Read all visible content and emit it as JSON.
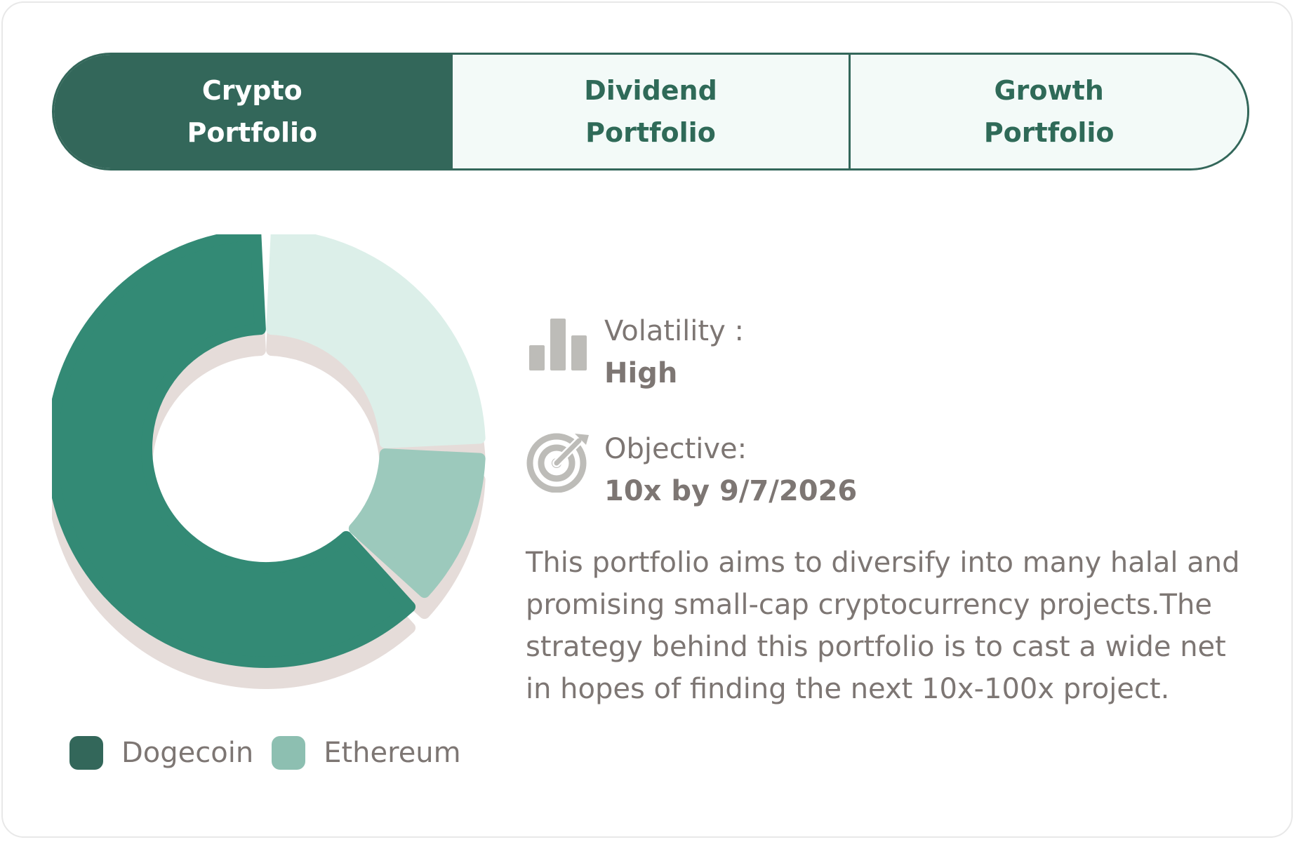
{
  "tabs": [
    {
      "label": "Crypto Portfolio",
      "active": true
    },
    {
      "label": "Dividend Portfolio",
      "active": false
    },
    {
      "label": "Growth Portfolio",
      "active": false
    }
  ],
  "details": {
    "volatility_label": "Volatility :",
    "volatility_value": "High",
    "objective_label": "Objective:",
    "objective_value": "10x by 9/7/2026",
    "description": "This portfolio aims to diversify into many halal and promising small-cap cryptocurrency projects.The strategy behind this portfolio is to cast a wide net in hopes of finding the next 10x-100x project."
  },
  "icons": {
    "volatility": "bar-chart-icon",
    "objective": "target-icon"
  },
  "colors": {
    "primary": "#33675a",
    "segment_main": "#338a75",
    "segment_light": "#dcefe9",
    "segment_mid": "#9cc9bc",
    "shadow": "#e5dcd9",
    "text_muted": "#7d7673"
  },
  "chart_data": {
    "type": "pie",
    "variant": "donut",
    "slices": [
      {
        "name": "",
        "value": 62.5
      },
      {
        "name": "",
        "value": 25
      },
      {
        "name": "",
        "value": 12.5
      }
    ],
    "legend": [
      {
        "name": "Dogecoin",
        "color": "#33675a"
      },
      {
        "name": "Ethereum",
        "color": "#8dbfb1"
      }
    ]
  }
}
